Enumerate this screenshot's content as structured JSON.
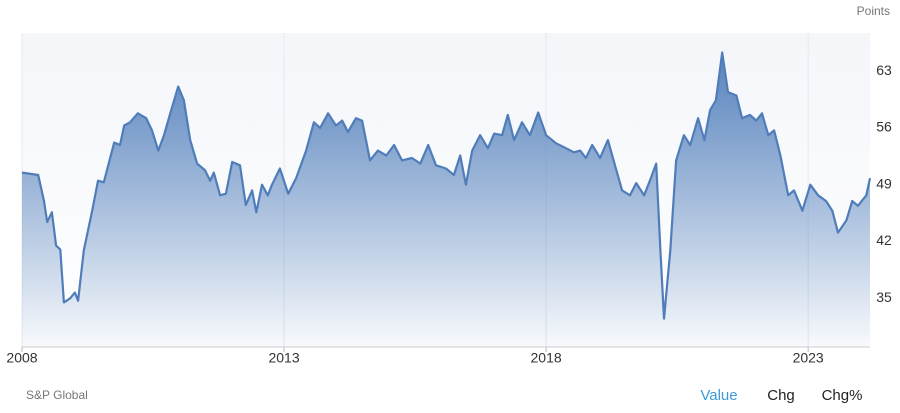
{
  "chart_data": {
    "type": "area",
    "y_label": "Points",
    "source": "S&P Global",
    "color": "#4f7dba",
    "xlim": [
      2008,
      2024.18
    ],
    "xticks": [
      2008,
      2013,
      2018,
      2023
    ],
    "ylim": [
      29,
      67.7
    ],
    "yticks": [
      35,
      42,
      49,
      56,
      63
    ],
    "grid": true,
    "x": [
      2008.0,
      2008.31,
      2008.42,
      2008.48,
      2008.57,
      2008.65,
      2008.73,
      2008.8,
      2008.92,
      2009.01,
      2009.07,
      2009.18,
      2009.34,
      2009.45,
      2009.56,
      2009.76,
      2009.87,
      2009.95,
      2010.06,
      2010.21,
      2010.37,
      2010.48,
      2010.6,
      2010.71,
      2010.82,
      2010.98,
      2011.09,
      2011.21,
      2011.34,
      2011.49,
      2011.59,
      2011.66,
      2011.78,
      2011.89,
      2012.01,
      2012.16,
      2012.27,
      2012.39,
      2012.47,
      2012.58,
      2012.69,
      2012.77,
      2012.92,
      2013.08,
      2013.23,
      2013.42,
      2013.57,
      2013.69,
      2013.84,
      2013.99,
      2014.11,
      2014.22,
      2014.37,
      2014.49,
      2014.64,
      2014.79,
      2014.95,
      2015.1,
      2015.25,
      2015.44,
      2015.6,
      2015.75,
      2015.9,
      2016.09,
      2016.24,
      2016.36,
      2016.47,
      2016.59,
      2016.74,
      2016.89,
      2017.01,
      2017.16,
      2017.27,
      2017.39,
      2017.54,
      2017.69,
      2017.85,
      2018.0,
      2018.19,
      2018.38,
      2018.53,
      2018.65,
      2018.76,
      2018.88,
      2019.03,
      2019.18,
      2019.34,
      2019.45,
      2019.6,
      2019.72,
      2019.87,
      2019.98,
      2020.1,
      2020.18,
      2020.25,
      2020.37,
      2020.48,
      2020.63,
      2020.75,
      2020.9,
      2021.02,
      2021.13,
      2021.24,
      2021.36,
      2021.47,
      2021.63,
      2021.74,
      2021.89,
      2022.01,
      2022.12,
      2022.24,
      2022.35,
      2022.47,
      2022.62,
      2022.73,
      2022.89,
      2023.04,
      2023.19,
      2023.34,
      2023.46,
      2023.57,
      2023.73,
      2023.84,
      2023.95,
      2024.11,
      2024.18
    ],
    "series": [
      {
        "name": "Value",
        "values": [
          50.5,
          50.2,
          47,
          44.4,
          45.6,
          41.5,
          41,
          34.5,
          35,
          35.7,
          34.7,
          40.9,
          45.8,
          49.5,
          49.3,
          54.2,
          53.9,
          56.3,
          56.7,
          57.8,
          57.2,
          55.7,
          53.2,
          55.1,
          57.6,
          61.1,
          59.4,
          54.5,
          51.6,
          50.8,
          49.5,
          50.5,
          47.7,
          47.9,
          51.8,
          51.4,
          46.5,
          48.3,
          45.6,
          49,
          47.7,
          49,
          51,
          47.9,
          49.8,
          53.2,
          56.7,
          56,
          57.8,
          56.3,
          56.9,
          55.5,
          57.2,
          56.9,
          52,
          53.2,
          52.6,
          53.9,
          52,
          52.3,
          51.6,
          53.9,
          51.4,
          51,
          50.2,
          52.6,
          49,
          53.2,
          55.1,
          53.5,
          55.3,
          55.1,
          57.6,
          54.5,
          56.7,
          55.1,
          57.9,
          55.1,
          54.1,
          53.5,
          53,
          53.2,
          52.3,
          53.9,
          52.3,
          54.5,
          50.8,
          48.3,
          47.7,
          49.2,
          47.7,
          49.5,
          51.6,
          40.9,
          32.5,
          40.9,
          52,
          55.1,
          53.9,
          57.2,
          54.5,
          58.2,
          59.4,
          65.3,
          60.4,
          60,
          57.2,
          57.6,
          56.9,
          57.8,
          55.1,
          55.7,
          52.6,
          47.7,
          48.3,
          45.8,
          49,
          47.7,
          47,
          45.8,
          43.1,
          44.6,
          47,
          46.4,
          47.7,
          49.8
        ]
      }
    ]
  },
  "tabs": [
    "Value",
    "Chg",
    "Chg%"
  ]
}
